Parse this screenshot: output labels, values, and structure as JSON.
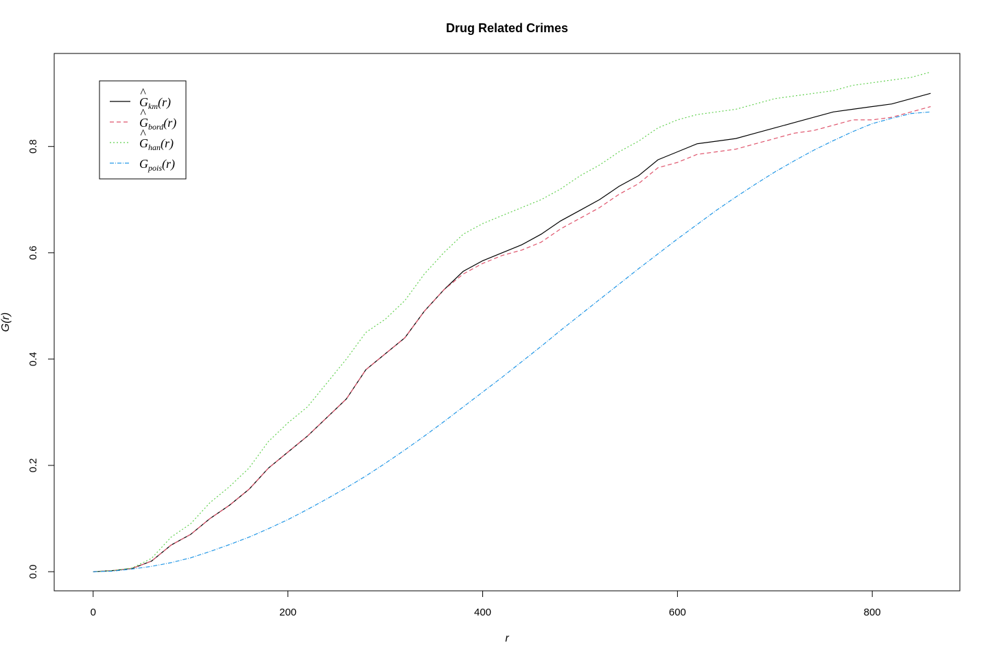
{
  "chart_data": {
    "type": "line",
    "title": "Drug Related Crimes",
    "xlabel": "r",
    "ylabel": "G(r)",
    "xlim": [
      -40,
      890
    ],
    "ylim": [
      -0.036,
      0.975
    ],
    "x_ticks": [
      0,
      200,
      400,
      600,
      800
    ],
    "y_ticks": [
      0.0,
      0.2,
      0.4,
      0.6,
      0.8
    ],
    "x_tick_labels": [
      "0",
      "200",
      "400",
      "600",
      "800"
    ],
    "y_tick_labels": [
      "0.0",
      "0.2",
      "0.4",
      "0.6",
      "0.8"
    ],
    "grid": false,
    "legend_position": "top-left",
    "series": [
      {
        "name": "Ĝ_km(r)",
        "name_base": "G",
        "name_sub": "km",
        "name_arg": "(r)",
        "hat": true,
        "color": "#000000",
        "dash": "",
        "x": [
          0,
          20,
          40,
          60,
          80,
          100,
          120,
          140,
          160,
          180,
          200,
          220,
          240,
          260,
          280,
          300,
          320,
          340,
          360,
          380,
          400,
          420,
          440,
          460,
          480,
          500,
          520,
          540,
          560,
          580,
          600,
          620,
          640,
          660,
          680,
          700,
          720,
          740,
          760,
          780,
          800,
          820,
          840,
          860
        ],
        "y": [
          0,
          0.002,
          0.006,
          0.02,
          0.05,
          0.07,
          0.1,
          0.125,
          0.155,
          0.195,
          0.225,
          0.255,
          0.29,
          0.325,
          0.38,
          0.41,
          0.44,
          0.49,
          0.53,
          0.565,
          0.585,
          0.6,
          0.615,
          0.635,
          0.66,
          0.68,
          0.7,
          0.725,
          0.745,
          0.775,
          0.79,
          0.805,
          0.81,
          0.815,
          0.825,
          0.835,
          0.845,
          0.855,
          0.865,
          0.87,
          0.875,
          0.88,
          0.89,
          0.9
        ]
      },
      {
        "name": "Ĝ_bord(r)",
        "name_base": "G",
        "name_sub": "bord",
        "name_arg": "(r)",
        "hat": true,
        "color": "#df536b",
        "dash": "6,4",
        "x": [
          0,
          20,
          40,
          60,
          80,
          100,
          120,
          140,
          160,
          180,
          200,
          220,
          240,
          260,
          280,
          300,
          320,
          340,
          360,
          380,
          400,
          420,
          440,
          460,
          480,
          500,
          520,
          540,
          560,
          580,
          600,
          620,
          640,
          660,
          680,
          700,
          720,
          740,
          760,
          780,
          800,
          820,
          840,
          860
        ],
        "y": [
          0,
          0.002,
          0.006,
          0.02,
          0.05,
          0.07,
          0.1,
          0.125,
          0.155,
          0.195,
          0.225,
          0.255,
          0.29,
          0.325,
          0.38,
          0.41,
          0.44,
          0.49,
          0.53,
          0.56,
          0.58,
          0.595,
          0.605,
          0.62,
          0.645,
          0.665,
          0.685,
          0.71,
          0.73,
          0.76,
          0.77,
          0.785,
          0.79,
          0.795,
          0.805,
          0.815,
          0.825,
          0.83,
          0.84,
          0.85,
          0.85,
          0.855,
          0.865,
          0.875
        ]
      },
      {
        "name": "Ĝ_han(r)",
        "name_base": "G",
        "name_sub": "han",
        "name_arg": "(r)",
        "hat": true,
        "color": "#61d04f",
        "dash": "2,3",
        "x": [
          0,
          20,
          40,
          60,
          80,
          100,
          120,
          140,
          160,
          180,
          200,
          220,
          240,
          260,
          280,
          300,
          320,
          340,
          360,
          380,
          400,
          420,
          440,
          460,
          480,
          500,
          520,
          540,
          560,
          580,
          600,
          620,
          640,
          660,
          680,
          700,
          720,
          740,
          760,
          780,
          800,
          820,
          840,
          860
        ],
        "y": [
          0,
          0.002,
          0.007,
          0.025,
          0.065,
          0.09,
          0.13,
          0.16,
          0.195,
          0.245,
          0.28,
          0.31,
          0.355,
          0.4,
          0.45,
          0.475,
          0.51,
          0.56,
          0.6,
          0.635,
          0.655,
          0.67,
          0.685,
          0.7,
          0.72,
          0.745,
          0.765,
          0.79,
          0.81,
          0.835,
          0.85,
          0.86,
          0.865,
          0.87,
          0.88,
          0.89,
          0.895,
          0.9,
          0.905,
          0.915,
          0.92,
          0.925,
          0.93,
          0.94
        ]
      },
      {
        "name": "G_pois(r)",
        "name_base": "G",
        "name_sub": "pois",
        "name_arg": "(r)",
        "hat": false,
        "color": "#2297e6",
        "dash": "6,2,1,2",
        "x": [
          0,
          20,
          40,
          60,
          80,
          100,
          120,
          140,
          160,
          180,
          200,
          220,
          240,
          260,
          280,
          300,
          320,
          340,
          360,
          380,
          400,
          420,
          440,
          460,
          480,
          500,
          520,
          540,
          560,
          580,
          600,
          620,
          640,
          660,
          680,
          700,
          720,
          740,
          760,
          780,
          800,
          820,
          840,
          860
        ],
        "y": [
          0,
          0.001,
          0.005,
          0.01,
          0.017,
          0.026,
          0.038,
          0.051,
          0.065,
          0.081,
          0.098,
          0.117,
          0.137,
          0.158,
          0.18,
          0.204,
          0.229,
          0.255,
          0.282,
          0.31,
          0.338,
          0.366,
          0.395,
          0.424,
          0.454,
          0.483,
          0.512,
          0.541,
          0.57,
          0.598,
          0.626,
          0.653,
          0.68,
          0.705,
          0.729,
          0.752,
          0.773,
          0.793,
          0.811,
          0.828,
          0.843,
          0.853,
          0.862,
          0.865
        ]
      }
    ]
  }
}
